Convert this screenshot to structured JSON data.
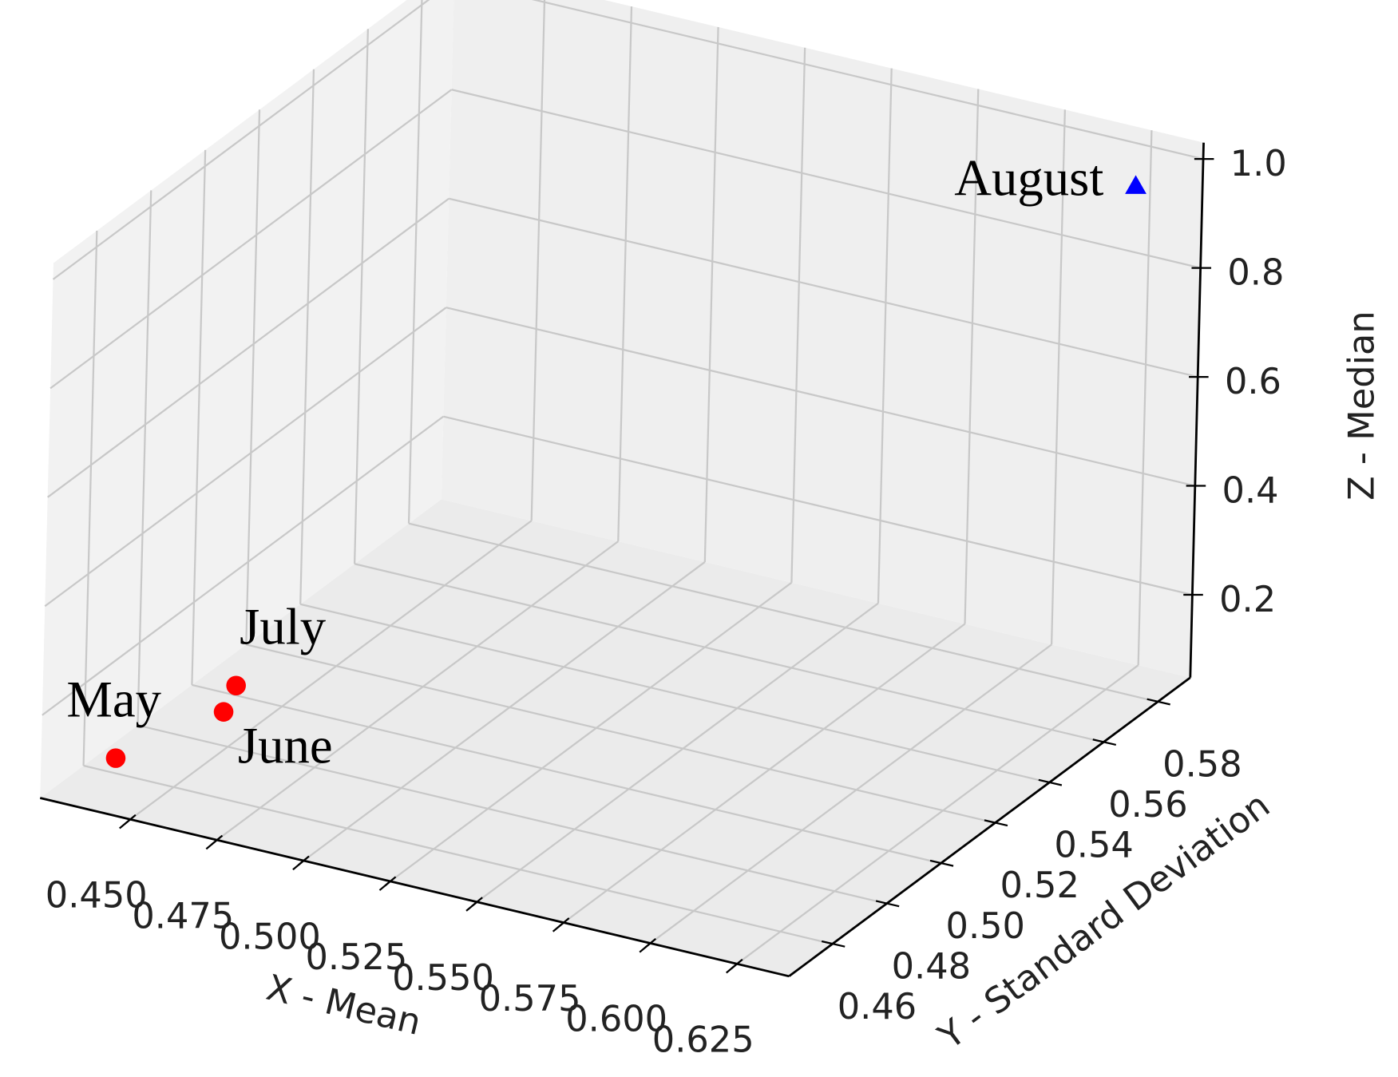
{
  "chart_data": {
    "type": "scatter3d",
    "xlabel": "X - Mean",
    "ylabel": "Y - Standard Deviation",
    "zlabel": "Z - Median",
    "series": [
      {
        "name": "May",
        "color": "#ff0000",
        "marker": "circle",
        "x": [
          0.437
        ],
        "y": [
          0.455
        ],
        "z": [
          0.1
        ]
      },
      {
        "name": "June",
        "color": "#ff0000",
        "marker": "circle",
        "x": [
          0.447
        ],
        "y": [
          0.482
        ],
        "z": [
          0.1
        ]
      },
      {
        "name": "July",
        "color": "#ff0000",
        "marker": "circle",
        "x": [
          0.442
        ],
        "y": [
          0.493
        ],
        "z": [
          0.1
        ]
      },
      {
        "name": "August",
        "color": "#0000ff",
        "marker": "triangle",
        "x": [
          0.63
        ],
        "y": [
          0.58
        ],
        "z": [
          0.98
        ]
      }
    ],
    "xlim": [
      0.424,
      0.64
    ],
    "ylim": [
      0.444,
      0.592
    ],
    "zlim": [
      0.048,
      1.03
    ],
    "xticks": [
      {
        "value": 0.45,
        "label": "0.450"
      },
      0.475,
      {
        "value": 0.5,
        "label": "0.500"
      },
      0.525,
      {
        "value": 0.55,
        "label": "0.550"
      },
      0.575,
      {
        "value": 0.6,
        "label": "0.600"
      },
      0.625
    ],
    "yticks": [
      0.46,
      0.48,
      {
        "value": 0.5,
        "label": "0.50"
      },
      0.52,
      0.54,
      0.56,
      0.58
    ],
    "zticks": [
      0.2,
      0.4,
      0.6,
      0.8,
      {
        "value": 1.0,
        "label": "1.0"
      }
    ],
    "grid": true
  }
}
